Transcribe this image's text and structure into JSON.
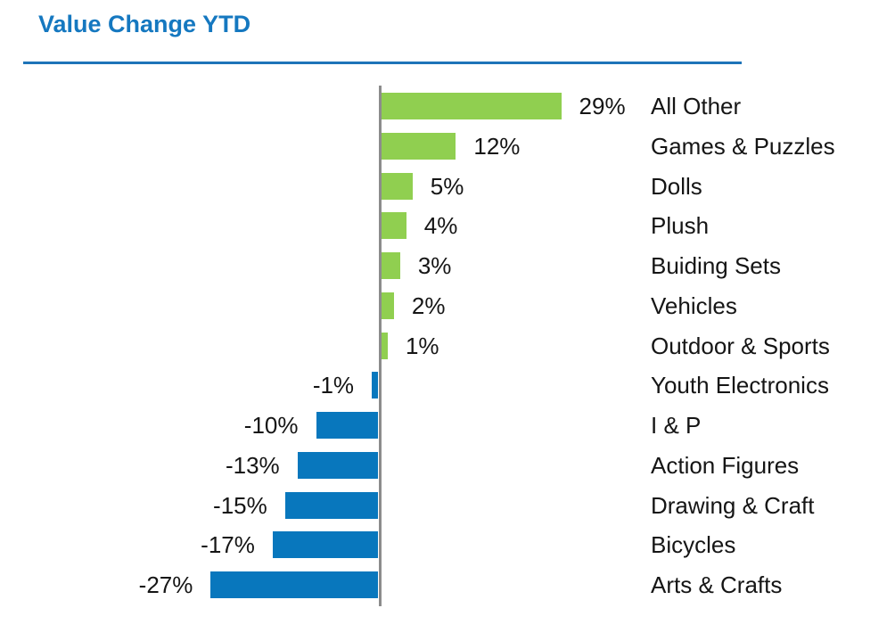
{
  "title": "Value Change YTD",
  "colors": {
    "title": "#1578C0",
    "rule": "#1E74B8",
    "axis": "#8C8C8C",
    "text": "#151515",
    "positive_bar": "#90CF50",
    "negative_bar": "#0877BD"
  },
  "chart_data": {
    "type": "bar",
    "orientation": "horizontal",
    "title": "Value Change YTD",
    "unit": "percent",
    "xlim": [
      -30,
      30
    ],
    "baseline": 0,
    "grid": false,
    "legend": false,
    "value_label_position": "outside-end",
    "category_label_position": "right-column",
    "categories": [
      "All Other",
      "Games & Puzzles",
      "Dolls",
      "Plush",
      "Buiding Sets",
      "Vehicles",
      "Outdoor & Sports",
      "Youth Electronics",
      "I & P",
      "Action Figures",
      "Drawing & Craft",
      "Bicycles",
      "Arts & Crafts"
    ],
    "values": [
      29,
      12,
      5,
      4,
      3,
      2,
      1,
      -1,
      -10,
      -13,
      -15,
      -17,
      -27
    ],
    "value_labels": [
      "29%",
      "12%",
      "5%",
      "4%",
      "3%",
      "2%",
      "1%",
      "-1%",
      "-10%",
      "-13%",
      "-15%",
      "-17%",
      "-27%"
    ],
    "positive_color": "#90CF50",
    "negative_color": "#0877BD"
  }
}
